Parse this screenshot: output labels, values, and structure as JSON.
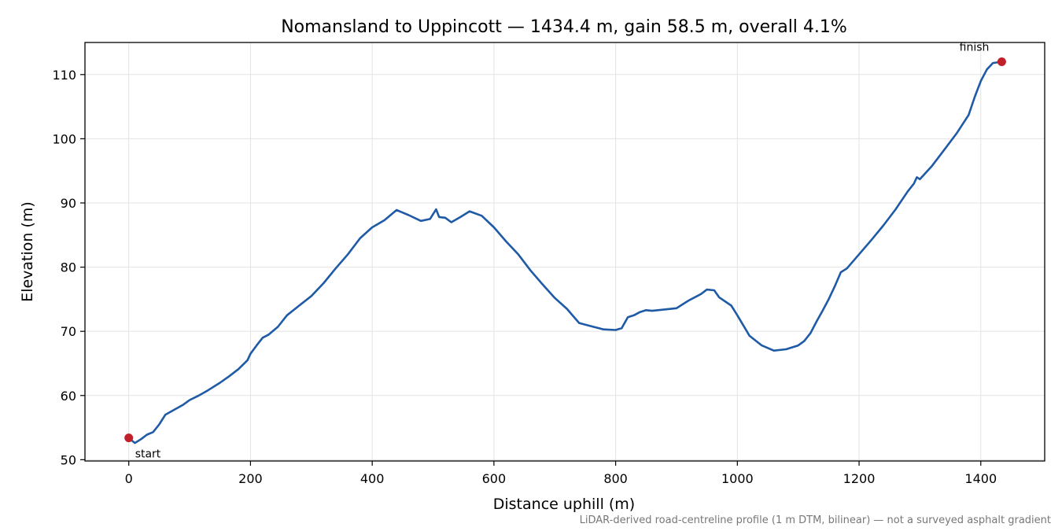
{
  "chart_data": {
    "type": "line",
    "title": "Nomansland to Uppincott — 1434.4 m, gain 58.5 m, overall 4.1%",
    "xlabel": "Distance uphill (m)",
    "ylabel": "Elevation (m)",
    "xlim": [
      -72,
      1505
    ],
    "ylim": [
      49.8,
      115
    ],
    "xticks": [
      0,
      200,
      400,
      600,
      800,
      1000,
      1200,
      1400
    ],
    "yticks": [
      50,
      60,
      70,
      80,
      90,
      100,
      110
    ],
    "grid": true,
    "colors": {
      "line": "#1f5aa6",
      "markers": "#c0202a",
      "grid": "#e3e3e3"
    },
    "series": [
      {
        "x": [
          0,
          10,
          20,
          30,
          40,
          50,
          60,
          75,
          90,
          100,
          115,
          130,
          150,
          165,
          180,
          195,
          200,
          210,
          220,
          230,
          245,
          260,
          280,
          300,
          320,
          340,
          360,
          380,
          400,
          420,
          440,
          460,
          480,
          495,
          505,
          510,
          520,
          530,
          545,
          560,
          580,
          600,
          620,
          640,
          660,
          680,
          700,
          720,
          740,
          760,
          780,
          800,
          810,
          820,
          830,
          840,
          850,
          860,
          880,
          900,
          910,
          920,
          940,
          950,
          962,
          970,
          990,
          1000,
          1020,
          1040,
          1060,
          1080,
          1100,
          1110,
          1120,
          1130,
          1140,
          1150,
          1160,
          1170,
          1180,
          1200,
          1220,
          1240,
          1260,
          1280,
          1290,
          1295,
          1300,
          1320,
          1340,
          1360,
          1380,
          1390,
          1400,
          1410,
          1420,
          1434.4
        ],
        "values": [
          53.4,
          52.6,
          53.2,
          53.9,
          54.3,
          55.5,
          57.0,
          57.8,
          58.6,
          59.3,
          60.0,
          60.8,
          62.0,
          63.0,
          64.1,
          65.5,
          66.5,
          67.8,
          69.0,
          69.5,
          70.7,
          72.5,
          74.0,
          75.5,
          77.5,
          79.8,
          82.0,
          84.5,
          86.2,
          87.3,
          88.9,
          88.1,
          87.2,
          87.5,
          89.0,
          87.8,
          87.7,
          87.0,
          87.8,
          88.7,
          88.0,
          86.2,
          84.0,
          82.0,
          79.5,
          77.3,
          75.2,
          73.5,
          71.3,
          70.8,
          70.3,
          70.2,
          70.5,
          72.2,
          72.5,
          73.0,
          73.3,
          73.2,
          73.4,
          73.6,
          74.2,
          74.8,
          75.8,
          76.5,
          76.4,
          75.3,
          74.0,
          72.5,
          69.3,
          67.8,
          67.0,
          67.2,
          67.8,
          68.5,
          69.7,
          71.5,
          73.2,
          75.0,
          77.0,
          79.2,
          79.8,
          82.0,
          84.2,
          86.5,
          89.0,
          91.8,
          93.0,
          94.0,
          93.7,
          95.8,
          98.3,
          100.8,
          103.7,
          106.5,
          109.0,
          110.8,
          111.8,
          112.0
        ]
      }
    ],
    "annotations": [
      {
        "label": "start",
        "x": 0,
        "y": 53.4
      },
      {
        "label": "finish",
        "x": 1434.4,
        "y": 112.0
      }
    ],
    "footnote": "LiDAR-derived road-centreline profile (1 m DTM, bilinear) — not a surveyed asphalt gradient"
  }
}
